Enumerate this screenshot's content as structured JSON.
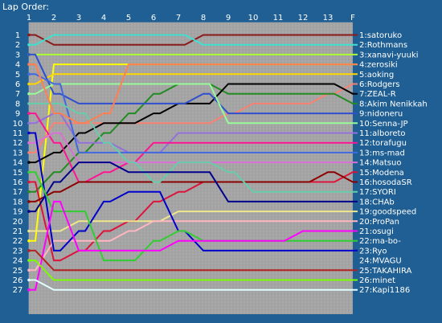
{
  "chart_data": {
    "type": "line",
    "title": "Lap Order:",
    "x_ticks": [
      "1",
      "2",
      "3",
      "4",
      "5",
      "6",
      "7",
      "8",
      "9",
      "10",
      "11",
      "12",
      "13",
      "F"
    ],
    "y_positions": [
      "1",
      "2",
      "3",
      "4",
      "5",
      "6",
      "7",
      "8",
      "9",
      "10",
      "11",
      "12",
      "13",
      "14",
      "15",
      "16",
      "17",
      "18",
      "19",
      "20",
      "21",
      "22",
      "23",
      "24",
      "25",
      "26",
      "27"
    ],
    "grid": true,
    "series": [
      {
        "name": "1:satoruko",
        "color": "#8b1a1a",
        "y": [
          1,
          2,
          2,
          2,
          2,
          2,
          2,
          1,
          1,
          1,
          1,
          1,
          1,
          1
        ]
      },
      {
        "name": "2:Rothmans",
        "color": "#40e0d0",
        "y": [
          2,
          1,
          1,
          1,
          1,
          1,
          1,
          2,
          2,
          2,
          2,
          2,
          2,
          2
        ]
      },
      {
        "name": "3:xanavi-yuuki",
        "color": "#adff2f",
        "y": [
          3,
          3,
          3,
          3,
          3,
          3,
          3,
          3,
          3,
          3,
          3,
          3,
          3,
          3
        ]
      },
      {
        "name": "4:zerosiki",
        "color": "#ffff00",
        "y": [
          22,
          4,
          4,
          4,
          4,
          4,
          4,
          4,
          4,
          4,
          4,
          4,
          4,
          4
        ]
      },
      {
        "name": "5:aoking",
        "color": "#ffd700",
        "y": [
          6,
          5,
          5,
          5,
          5,
          5,
          5,
          5,
          5,
          5,
          5,
          5,
          5,
          5
        ]
      },
      {
        "name": "6:Rodgers",
        "color": "#fa8072",
        "y": [
          13,
          10,
          10,
          10,
          10,
          10,
          10,
          10,
          9,
          8,
          8,
          8,
          7,
          6
        ]
      },
      {
        "name": "7:ZEAL-R",
        "color": "#228b22",
        "y": [
          17,
          15,
          13,
          11,
          9,
          7,
          6,
          6,
          7,
          7,
          7,
          7,
          7,
          8
        ]
      },
      {
        "name": "8:Akim Nenikkah",
        "color": "#000000",
        "y": [
          14,
          13,
          11,
          10,
          10,
          9,
          8,
          8,
          6,
          6,
          6,
          6,
          6,
          7
        ]
      },
      {
        "name": "9:nidoneru",
        "color": "#2f4fcf",
        "y": [
          3,
          7,
          8,
          8,
          8,
          8,
          8,
          7,
          9,
          9,
          9,
          9,
          9,
          9
        ]
      },
      {
        "name": "10:Senna-JP",
        "color": "#98fb98",
        "y": [
          7,
          6,
          6,
          6,
          6,
          6,
          6,
          6,
          10,
          10,
          10,
          10,
          10,
          10
        ]
      },
      {
        "name": "11:alboreto",
        "color": "#9370db",
        "y": [
          10,
          9,
          12,
          12,
          13,
          13,
          11,
          11,
          11,
          11,
          11,
          11,
          11,
          11
        ]
      },
      {
        "name": "12:torafugu",
        "color": "#ff1493",
        "y": [
          9,
          12,
          16,
          15,
          14,
          12,
          12,
          12,
          12,
          12,
          12,
          12,
          12,
          12
        ]
      },
      {
        "name": "13:ms-mad",
        "color": "#4169e1",
        "y": [
          5,
          6,
          13,
          13,
          13,
          13,
          13,
          13,
          13,
          13,
          13,
          13,
          13,
          13
        ]
      },
      {
        "name": "14:Matsuo",
        "color": "#da70d6",
        "y": [
          12,
          11,
          14,
          14,
          14,
          14,
          14,
          14,
          14,
          14,
          14,
          14,
          14,
          14
        ]
      },
      {
        "name": "15:Modena",
        "color": "#dc143c",
        "y": [
          16,
          24,
          23,
          21,
          20,
          18,
          17,
          16,
          16,
          16,
          16,
          16,
          16,
          15
        ]
      },
      {
        "name": "16:hosodaSR",
        "color": "#8b0000",
        "y": [
          18,
          17,
          16,
          16,
          16,
          16,
          16,
          16,
          16,
          16,
          16,
          16,
          15,
          16
        ]
      },
      {
        "name": "17:SYORI",
        "color": "#66cdaa",
        "y": [
          8,
          8,
          9,
          12,
          14,
          16,
          14,
          14,
          15,
          17,
          17,
          17,
          17,
          17
        ]
      },
      {
        "name": "18:CHAb",
        "color": "#00008b",
        "y": [
          19,
          16,
          14,
          14,
          15,
          15,
          15,
          15,
          18,
          18,
          18,
          18,
          18,
          18
        ]
      },
      {
        "name": "19:goodspeed",
        "color": "#f0e68c",
        "y": [
          21,
          21,
          20,
          20,
          20,
          20,
          19,
          19,
          19,
          19,
          19,
          19,
          19,
          19
        ]
      },
      {
        "name": "20:ProPan",
        "color": "#ffb6c1",
        "y": [
          25,
          22,
          22,
          22,
          21,
          20,
          20,
          20,
          20,
          20,
          20,
          20,
          20,
          20
        ]
      },
      {
        "name": "21:osugi",
        "color": "#0000cd",
        "y": [
          11,
          23,
          21,
          18,
          17,
          17,
          21,
          23,
          23,
          23,
          23,
          23,
          23,
          23
        ]
      },
      {
        "name": "22:ma-bo-",
        "color": "#32cd32",
        "y": [
          15,
          19,
          19,
          24,
          24,
          22,
          21,
          22,
          22,
          22,
          22,
          22,
          22,
          22
        ]
      },
      {
        "name": "23:Ryo",
        "color": "#ff00ff",
        "y": [
          27,
          18,
          23,
          23,
          23,
          23,
          22,
          22,
          22,
          22,
          22,
          21,
          21,
          21
        ]
      },
      {
        "name": "24:MVAGU",
        "color": "#ff7f50",
        "y": [
          4,
          9,
          10,
          9,
          4,
          4,
          4,
          4,
          4,
          4,
          4,
          4,
          4,
          4
        ]
      },
      {
        "name": "25:TAKAHIRA",
        "color": "#b22222",
        "y": [
          23,
          25,
          25,
          25,
          25,
          25,
          25,
          25,
          25,
          25,
          25,
          25,
          25,
          25
        ]
      },
      {
        "name": "26:minet",
        "color": "#7cfc00",
        "y": [
          24,
          26,
          26,
          26,
          26,
          26,
          26,
          26,
          26,
          26,
          26,
          26,
          26,
          26
        ]
      },
      {
        "name": "27:Kapi1186",
        "color": "#e0ffff",
        "y": [
          26,
          27,
          27,
          27,
          27,
          27,
          27,
          27,
          27,
          27,
          27,
          27,
          27,
          27
        ]
      }
    ]
  }
}
